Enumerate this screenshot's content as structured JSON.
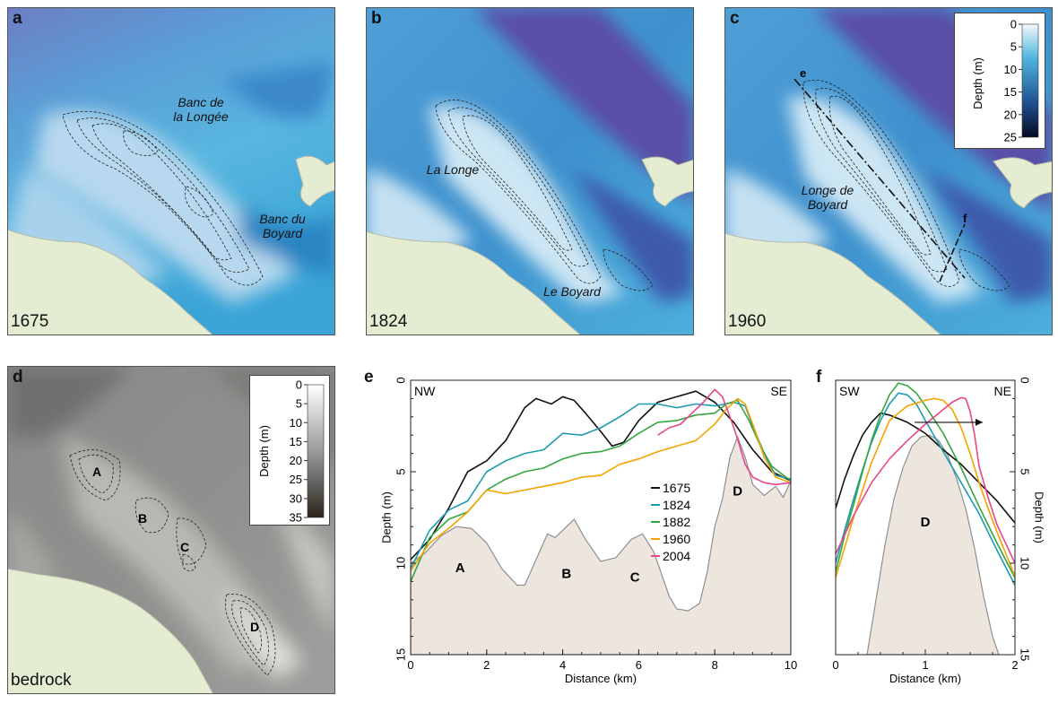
{
  "panels": {
    "a": {
      "letter": "a",
      "year": "1675",
      "labels": [
        "Banc de",
        "la Longée",
        "Banc du",
        "Boyard"
      ]
    },
    "b": {
      "letter": "b",
      "year": "1824",
      "labels": [
        "La Longe",
        "Le Boyard"
      ]
    },
    "c": {
      "letter": "c",
      "year": "1960",
      "labels": [
        "Longe de",
        "Boyard"
      ],
      "profile_marks": [
        "e",
        "f"
      ]
    },
    "d": {
      "letter": "d",
      "year": "bedrock",
      "features": [
        "A",
        "B",
        "C",
        "D"
      ]
    },
    "e": {
      "letter": "e"
    },
    "f": {
      "letter": "f"
    }
  },
  "legend_blue": {
    "title": "Depth (m)",
    "ticks": [
      "0",
      "5",
      "10",
      "15",
      "20",
      "25"
    ],
    "colors": [
      "#f4f9fc",
      "#4fb5dd",
      "#1f4f8f",
      "#060a22"
    ]
  },
  "legend_grey": {
    "title": "Depth (m)",
    "ticks": [
      "0",
      "5",
      "10",
      "15",
      "20",
      "25",
      "30",
      "35"
    ],
    "colors": [
      "#ffffff",
      "#9a9a98",
      "#2a241f"
    ]
  },
  "colors": {
    "land": "#e4ecd2",
    "sea_shallow": "#cfe3ef",
    "sea_mid": "#4fb0da",
    "sea_deep": "#4650a8",
    "bedrock_fill": "#ede6df",
    "bedrock_line": "#8f8f8f"
  },
  "chart_data": [
    {
      "type": "line",
      "title": "e",
      "xlabel": "Distance (km)",
      "ylabel": "Depth (m)",
      "xlim": [
        0,
        10
      ],
      "ylim": [
        15,
        0
      ],
      "y_inverted": true,
      "xticks": [
        "0",
        "2",
        "4",
        "6",
        "8",
        "10"
      ],
      "yticks": [
        "0",
        "5",
        "10",
        "15"
      ],
      "direction_labels": [
        "NW",
        "SE"
      ],
      "bedrock_labels": [
        {
          "text": "A",
          "x": 1.3,
          "y": 10.5
        },
        {
          "text": "B",
          "x": 4.1,
          "y": 10.8
        },
        {
          "text": "C",
          "x": 5.9,
          "y": 11.0
        },
        {
          "text": "D",
          "x": 8.6,
          "y": 6.3
        }
      ],
      "bedrock": {
        "x": [
          0,
          0.4,
          0.8,
          1.2,
          1.6,
          2.0,
          2.4,
          2.8,
          3.0,
          3.3,
          3.6,
          3.8,
          4.0,
          4.3,
          4.6,
          5.0,
          5.4,
          5.8,
          6.1,
          6.4,
          6.8,
          7.0,
          7.3,
          7.6,
          7.8,
          8.0,
          8.2,
          8.4,
          8.6,
          8.8,
          9.0,
          9.3,
          9.6,
          9.8,
          10
        ],
        "y": [
          10.0,
          9.4,
          8.5,
          8.0,
          8.1,
          8.9,
          10.3,
          11.2,
          11.2,
          9.8,
          8.4,
          8.6,
          8.2,
          7.6,
          8.7,
          9.9,
          9.7,
          8.7,
          8.4,
          9.4,
          11.8,
          12.5,
          12.6,
          12.2,
          10.5,
          8.0,
          6.5,
          4.2,
          3.1,
          4.2,
          5.7,
          6.3,
          5.8,
          6.4,
          5.5
        ]
      },
      "series": [
        {
          "name": "1675",
          "color": "#111111",
          "x": [
            0,
            0.5,
            1.0,
            1.5,
            2.0,
            2.5,
            3.0,
            3.3,
            3.7,
            4.0,
            4.3,
            4.6,
            5.0,
            5.3,
            5.6,
            6.0,
            6.5,
            7.0,
            7.5,
            8.0,
            8.5,
            9.0,
            9.5,
            10
          ],
          "y": [
            9.8,
            8.7,
            7.0,
            5.0,
            4.4,
            3.3,
            1.5,
            1.0,
            1.3,
            0.9,
            1.1,
            1.8,
            2.8,
            3.6,
            3.4,
            2.2,
            1.2,
            0.9,
            0.6,
            1.2,
            2.3,
            3.8,
            5.0,
            5.5
          ]
        },
        {
          "name": "1824",
          "color": "#1d9aae",
          "x": [
            0,
            0.5,
            1.0,
            1.5,
            2.0,
            2.5,
            3.0,
            3.5,
            4.0,
            4.5,
            5.0,
            5.5,
            6.0,
            6.5,
            7.0,
            7.5,
            8.0,
            8.5,
            8.8,
            9.0,
            9.3,
            9.6,
            10
          ],
          "y": [
            10.3,
            8.2,
            7.1,
            6.6,
            5.0,
            4.4,
            4.0,
            3.8,
            2.9,
            3.0,
            2.6,
            2.0,
            1.3,
            1.3,
            1.5,
            1.3,
            1.4,
            1.2,
            1.4,
            2.5,
            4.0,
            5.2,
            5.4
          ]
        },
        {
          "name": "1882",
          "color": "#35a540",
          "x": [
            0,
            0.5,
            1.0,
            1.5,
            2.0,
            2.5,
            3.0,
            3.5,
            4.0,
            4.5,
            5.0,
            5.5,
            6.0,
            6.5,
            7.0,
            7.5,
            8.0,
            8.3,
            8.6,
            8.9,
            9.2,
            9.5,
            10
          ],
          "y": [
            11.0,
            8.6,
            7.6,
            7.2,
            6.0,
            5.4,
            5.0,
            4.8,
            4.3,
            4.0,
            3.9,
            3.6,
            2.9,
            2.3,
            2.2,
            1.9,
            1.8,
            1.3,
            1.1,
            2.2,
            3.6,
            4.7,
            5.5
          ]
        },
        {
          "name": "1960",
          "color": "#f5a300",
          "x": [
            0,
            0.5,
            1.0,
            1.5,
            2.0,
            2.5,
            3.0,
            3.5,
            4.0,
            4.5,
            5.0,
            5.5,
            6.0,
            6.5,
            7.0,
            7.5,
            8.0,
            8.3,
            8.6,
            8.8,
            9.0,
            9.3,
            9.6,
            10
          ],
          "y": [
            10.4,
            8.9,
            8.1,
            7.2,
            6.0,
            6.2,
            6.0,
            5.8,
            5.6,
            5.3,
            5.2,
            4.6,
            4.3,
            3.9,
            3.6,
            3.3,
            2.4,
            1.6,
            1.0,
            1.3,
            2.4,
            4.2,
            5.3,
            5.6
          ]
        },
        {
          "name": "2004",
          "color": "#e8458c",
          "x": [
            6.5,
            6.8,
            7.1,
            7.4,
            7.7,
            8.0,
            8.2,
            8.4,
            8.6,
            8.8,
            9.0,
            9.3,
            9.6,
            10
          ],
          "y": [
            3.0,
            2.6,
            2.4,
            1.8,
            1.2,
            0.5,
            0.9,
            2.0,
            3.2,
            4.6,
            5.3,
            5.6,
            5.7,
            5.6
          ]
        }
      ],
      "legend_placement": "center-right"
    },
    {
      "type": "line",
      "title": "f",
      "xlabel": "Distance (km)",
      "ylabel": "Depth (m)",
      "xlim": [
        0,
        2
      ],
      "ylim": [
        15,
        0
      ],
      "y_inverted": true,
      "xticks": [
        "0",
        "1",
        "2"
      ],
      "yticks": [
        "0",
        "5",
        "10",
        "15"
      ],
      "direction_labels": [
        "SW",
        "NE"
      ],
      "bedrock_labels": [
        {
          "text": "D",
          "x": 1.0,
          "y": 8.0
        }
      ],
      "bedrock": {
        "x": [
          0.35,
          0.45,
          0.55,
          0.65,
          0.75,
          0.85,
          0.95,
          1.05,
          1.15,
          1.25,
          1.35,
          1.45,
          1.55,
          1.65,
          1.75,
          1.82
        ],
        "y": [
          15.0,
          12.0,
          9.0,
          6.5,
          4.8,
          3.6,
          3.1,
          3.0,
          3.3,
          4.1,
          5.4,
          7.0,
          9.2,
          11.8,
          14.0,
          15.0
        ]
      },
      "series": [
        {
          "name": "1675",
          "x": [
            0,
            0.1,
            0.2,
            0.3,
            0.4,
            0.5,
            0.6,
            0.8,
            1.0,
            1.2,
            1.4,
            1.6,
            1.8,
            2.0
          ],
          "y": [
            7.0,
            5.4,
            4.1,
            3.0,
            2.3,
            1.8,
            1.9,
            2.3,
            2.9,
            3.8,
            4.6,
            5.6,
            6.6,
            7.8
          ],
          "color": "#111111"
        },
        {
          "name": "1824",
          "x": [
            0,
            0.1,
            0.2,
            0.3,
            0.4,
            0.5,
            0.6,
            0.7,
            0.8,
            0.9,
            1.0,
            1.2,
            1.4,
            1.6,
            1.8,
            2.0
          ],
          "y": [
            10.0,
            8.2,
            6.5,
            4.9,
            3.4,
            2.2,
            1.3,
            0.7,
            0.8,
            1.3,
            2.2,
            3.9,
            5.6,
            7.3,
            9.3,
            11.2
          ],
          "color": "#1d9aae"
        },
        {
          "name": "1882",
          "x": [
            0,
            0.1,
            0.2,
            0.3,
            0.4,
            0.5,
            0.6,
            0.7,
            0.8,
            0.9,
            1.0,
            1.2,
            1.4,
            1.6,
            1.8,
            2.0
          ],
          "y": [
            10.5,
            8.5,
            6.8,
            5.0,
            3.3,
            1.9,
            0.8,
            0.15,
            0.3,
            0.7,
            1.4,
            2.9,
            4.8,
            6.9,
            8.9,
            10.8
          ],
          "color": "#35a540"
        },
        {
          "name": "1960",
          "x": [
            0,
            0.2,
            0.4,
            0.6,
            0.8,
            1.0,
            1.1,
            1.2,
            1.3,
            1.4,
            1.5,
            1.6,
            1.7,
            1.8,
            2.0
          ],
          "y": [
            10.8,
            7.5,
            4.5,
            2.2,
            1.4,
            1.1,
            1.0,
            1.1,
            1.6,
            2.6,
            4.0,
            5.6,
            7.0,
            8.3,
            10.7
          ],
          "color": "#f5a300"
        },
        {
          "name": "2004",
          "x": [
            0,
            0.2,
            0.4,
            0.6,
            0.8,
            1.0,
            1.2,
            1.3,
            1.4,
            1.45,
            1.5,
            1.55,
            1.6,
            1.7,
            1.8,
            2.0
          ],
          "y": [
            9.5,
            7.4,
            5.6,
            4.3,
            3.3,
            2.4,
            1.6,
            1.2,
            0.95,
            1.0,
            1.7,
            3.0,
            4.7,
            6.4,
            7.9,
            10.0
          ],
          "color": "#e8458c"
        }
      ]
    }
  ]
}
